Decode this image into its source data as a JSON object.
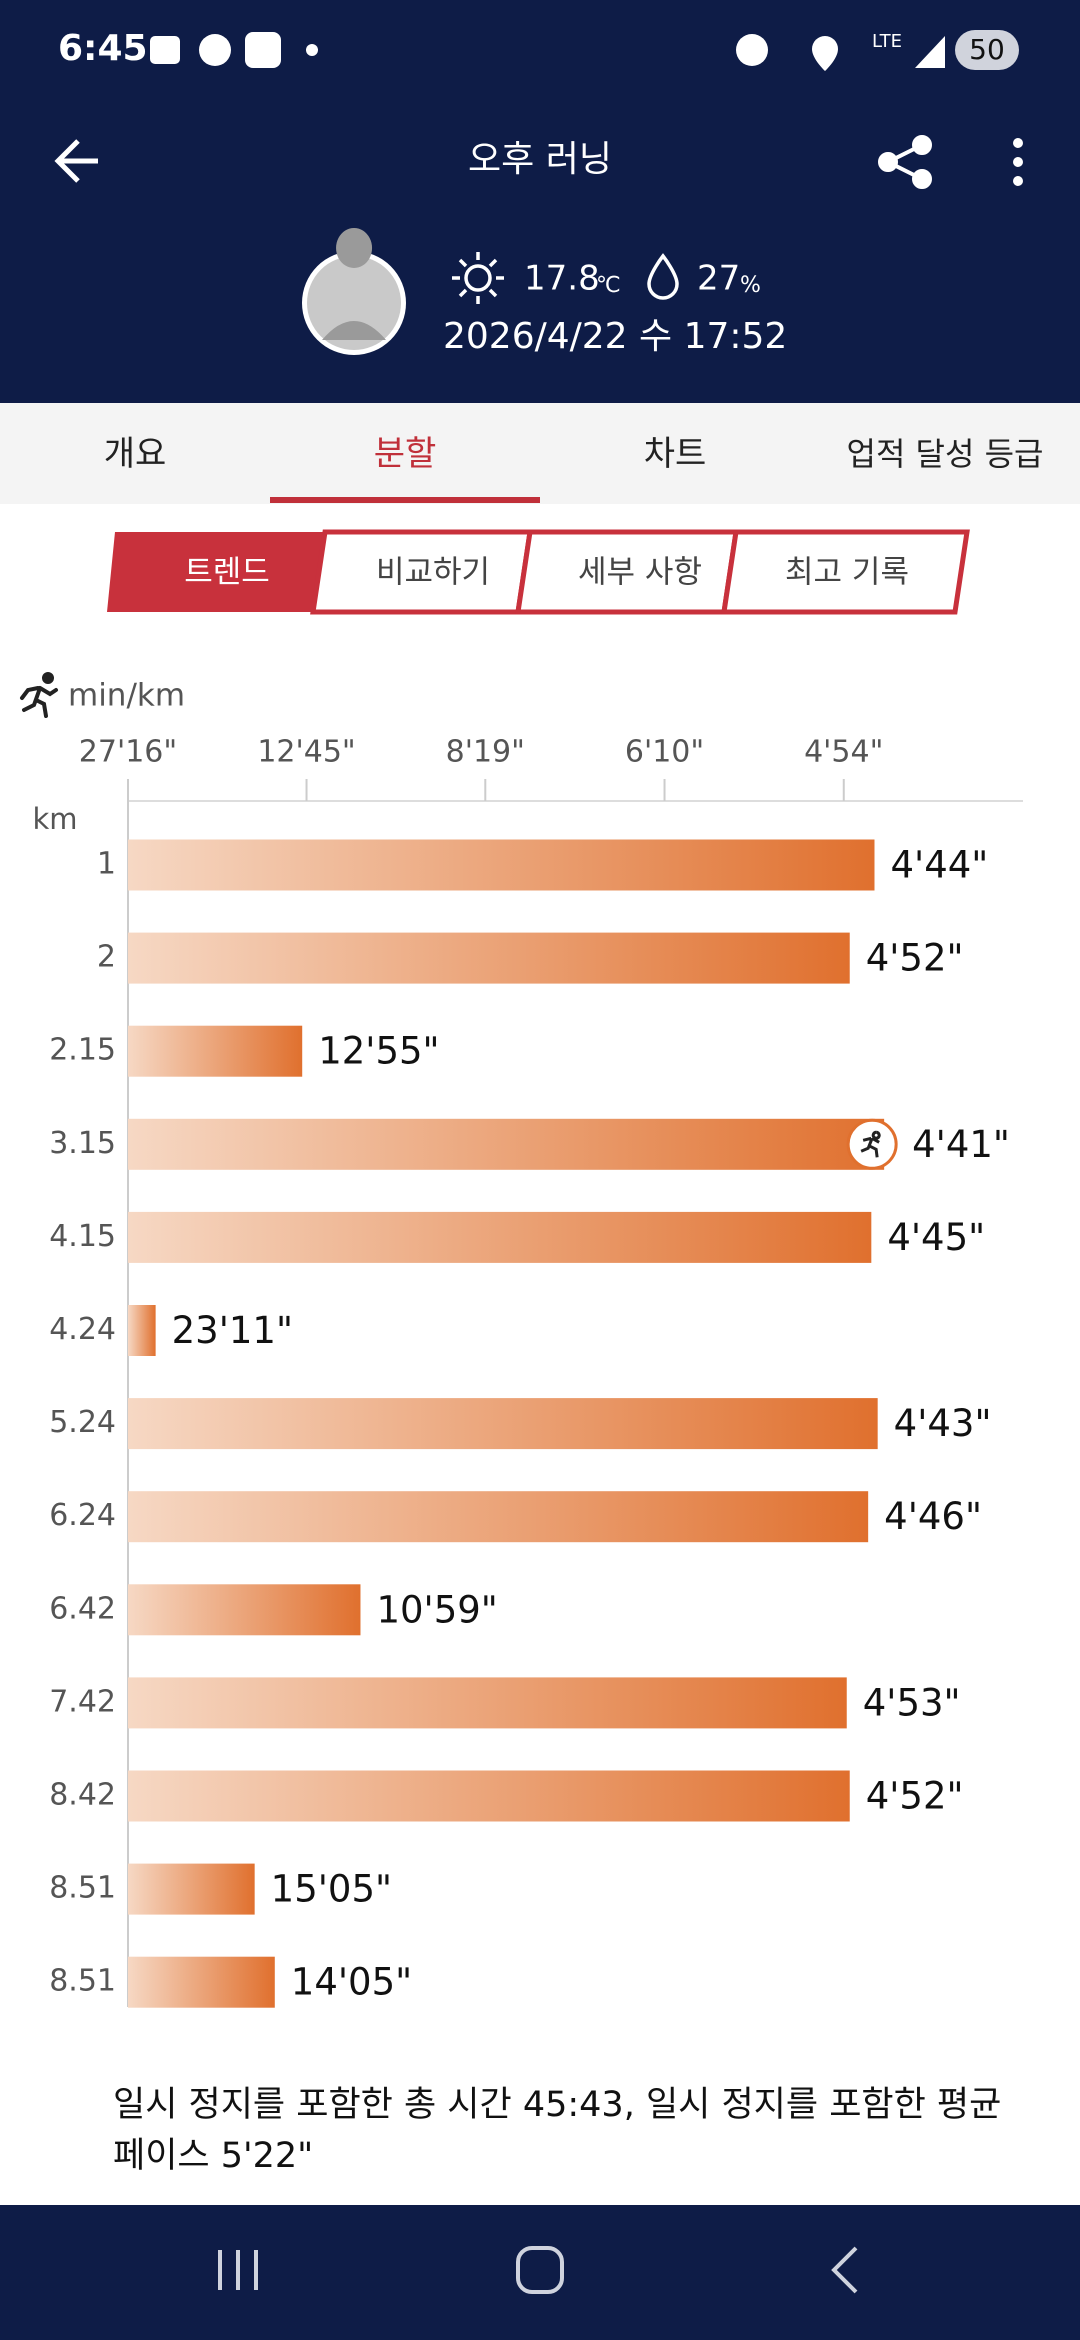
{
  "status_bar": {
    "time": "6:45",
    "network": "LTE",
    "battery": "50"
  },
  "header": {
    "title": "오후 러닝",
    "temperature": "17.8",
    "temperature_unit": "℃",
    "humidity": "27",
    "humidity_unit": "%",
    "datetime": "2026/4/22 수 17:52"
  },
  "tabs": [
    "개요",
    "분할",
    "차트",
    "업적 달성 등급"
  ],
  "segments": [
    "트렌드",
    "비교하기",
    "세부 사항",
    "최고 기록"
  ],
  "chart_data": {
    "type": "bar",
    "orientation": "horizontal",
    "x_scale": "reciprocal",
    "x_label": "min/km",
    "y_label": "km",
    "categories": [
      "1",
      "2",
      "2.15",
      "3.15",
      "4.15",
      "4.24",
      "5.24",
      "6.24",
      "6.42",
      "7.42",
      "8.42",
      "8.51",
      "8.51"
    ],
    "values": [
      4.7333,
      4.8667,
      12.9167,
      4.6833,
      4.75,
      23.1833,
      4.7167,
      4.7667,
      10.9833,
      4.8833,
      4.8667,
      15.0833,
      14.0833
    ],
    "value_labels": [
      "4'44\"",
      "4'52\"",
      "12'55\"",
      "4'41\"",
      "4'45\"",
      "23'11\"",
      "4'43\"",
      "4'46\"",
      "10'59\"",
      "4'53\"",
      "4'52\"",
      "15'05\"",
      "14'05\""
    ],
    "xlim": [
      27.2667,
      4.065
    ],
    "xticks": [
      {
        "value": 27.2667,
        "label": "27'16\""
      },
      {
        "value": 12.75,
        "label": "12'45\""
      },
      {
        "value": 8.3167,
        "label": "8'19\""
      },
      {
        "value": 6.1667,
        "label": "6'10\""
      },
      {
        "value": 4.9,
        "label": "4'54\""
      }
    ],
    "colors": [
      "#f6d8c4",
      "#e0702e"
    ],
    "grid": false
  },
  "footer": "일시 정지를 포함한 총 시간 45:43, 일시 정지를 포함한 평균 페이스 5'22\""
}
